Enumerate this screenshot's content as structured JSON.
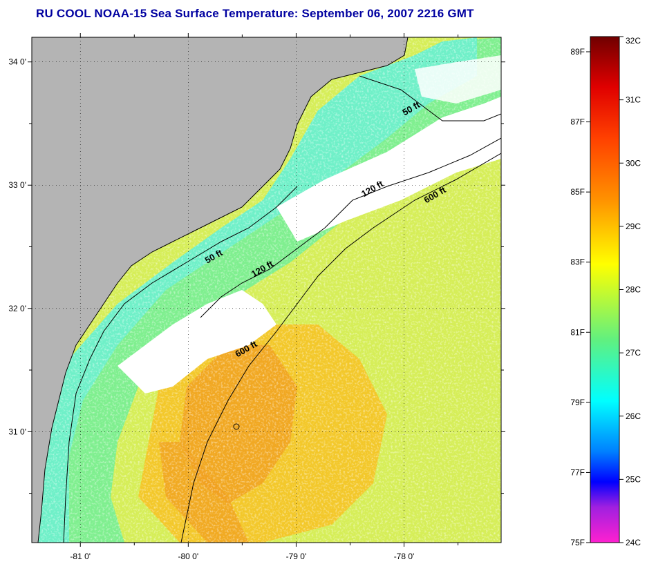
{
  "title": "RU COOL  NOAA-15  Sea Surface Temperature:  September 06, 2007 2216 GMT",
  "lat_ticks": [
    {
      "value": 34,
      "label": "34 0'"
    },
    {
      "value": 33,
      "label": "33 0'"
    },
    {
      "value": 32,
      "label": "32 0'"
    },
    {
      "value": 31,
      "label": "31 0'"
    }
  ],
  "lon_ticks": [
    {
      "value": -81,
      "label": "-81 0'"
    },
    {
      "value": -80,
      "label": "-80 0'"
    },
    {
      "value": -79,
      "label": "-79 0'"
    },
    {
      "value": -78,
      "label": "-78 0'"
    }
  ],
  "map_extent": {
    "lon": [
      -81.45,
      -77.1
    ],
    "lat": [
      30.1,
      34.2
    ]
  },
  "contour_labels": [
    {
      "text": "50 ft",
      "lon": -77.92,
      "lat": 33.6
    },
    {
      "text": "50 ft",
      "lon": -79.75,
      "lat": 32.4
    },
    {
      "text": "120 ft",
      "lon": -78.28,
      "lat": 32.95
    },
    {
      "text": "600 ft",
      "lon": -77.7,
      "lat": 32.9
    },
    {
      "text": "120 ft",
      "lon": -79.3,
      "lat": 32.3
    },
    {
      "text": "600 ft",
      "lon": -79.45,
      "lat": 31.65
    }
  ],
  "colorbar": {
    "celsius": [
      "32C",
      "31C",
      "30C",
      "29C",
      "28C",
      "27C",
      "26C",
      "25C",
      "24C"
    ],
    "fahrenheit": [
      "89F",
      "87F",
      "85F",
      "83F",
      "81F",
      "79F",
      "77F",
      "75F"
    ],
    "c_range": [
      24,
      32
    ]
  },
  "colors": {
    "land": "#b4b4b4",
    "cloud": "#ffffff",
    "shelf": "#7fef8f",
    "nearshore": "#6ff0c8",
    "warm": "#f3c82a",
    "hot": "#f0a020",
    "offshore": "#d6ee58",
    "title": "#0000a0"
  }
}
